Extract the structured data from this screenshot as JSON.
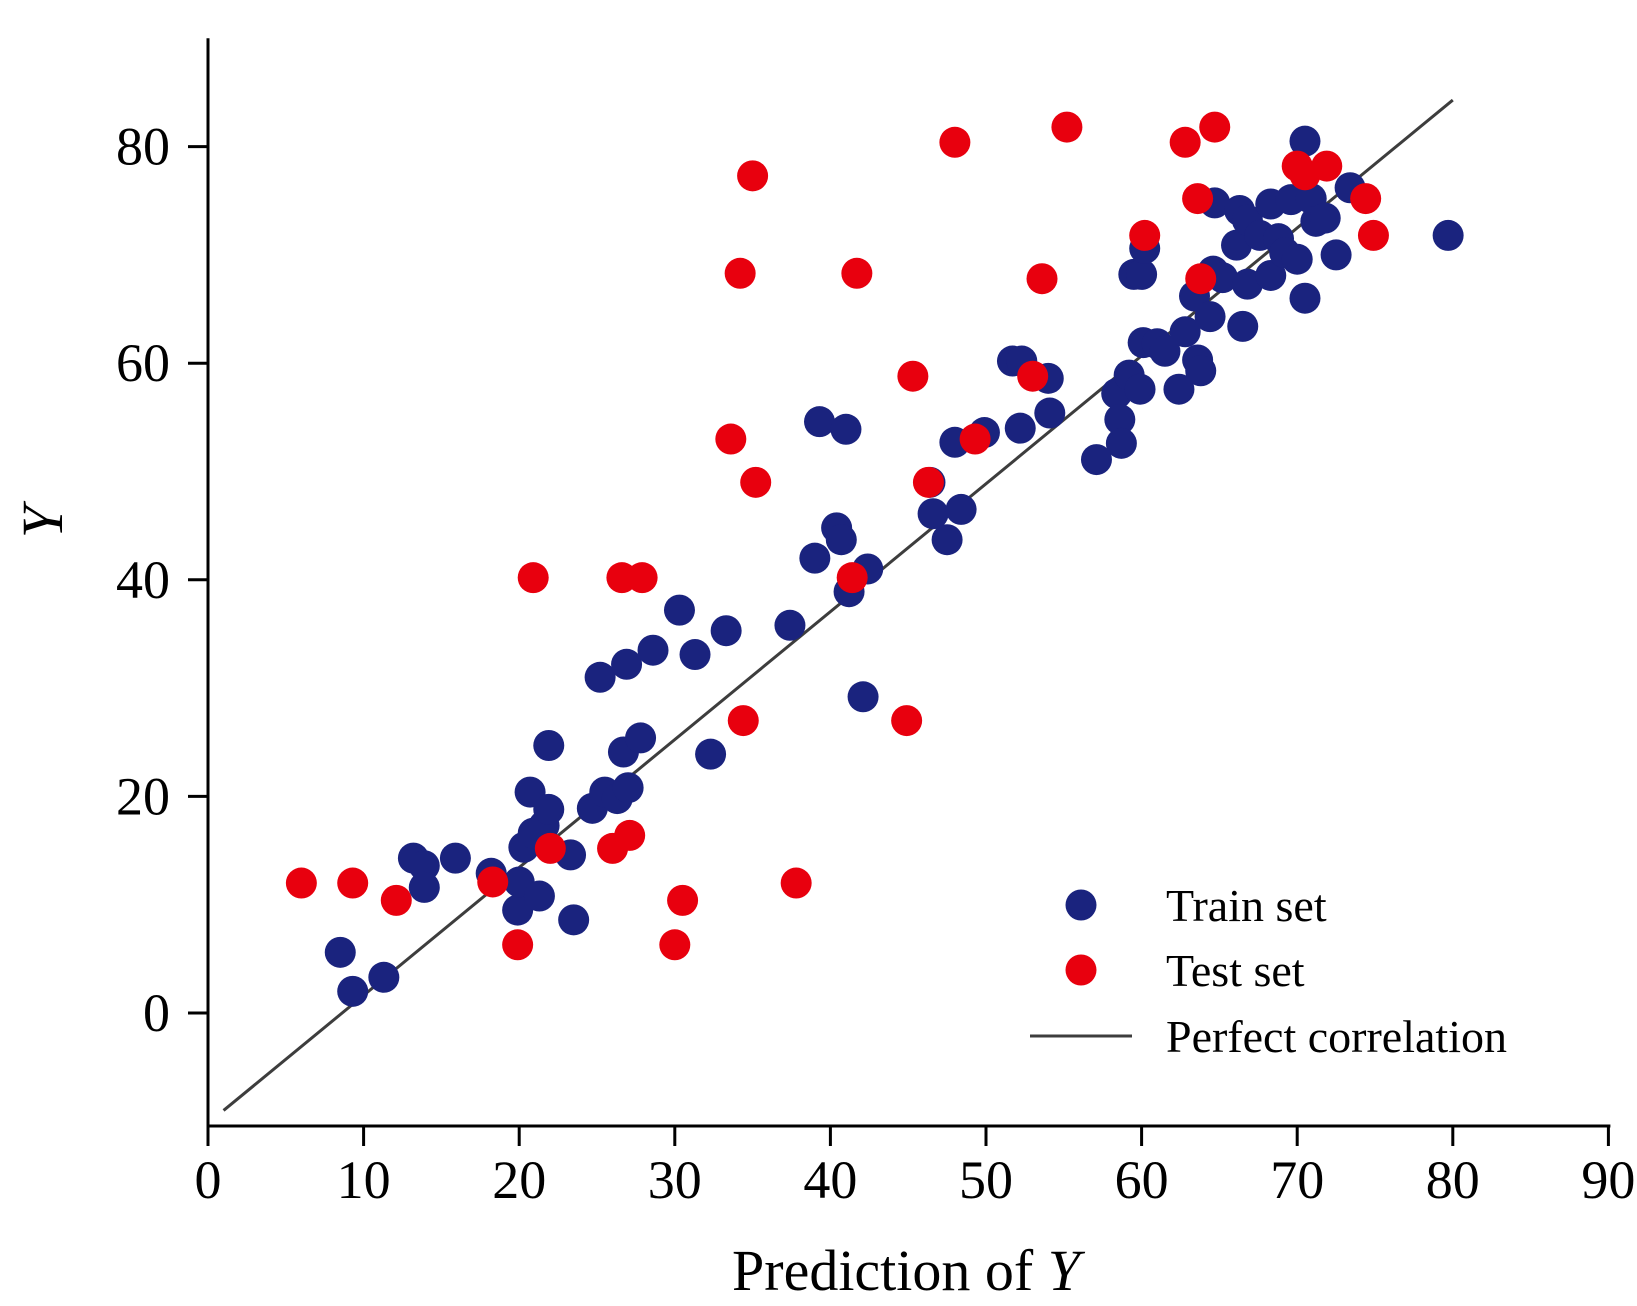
{
  "chart_data": {
    "type": "scatter",
    "title": "",
    "xlabel": "Prediction of Y",
    "xlabel_parts": {
      "text": "Prediction of ",
      "italic_var": "Y"
    },
    "ylabel": "Y",
    "xlim": [
      0,
      90
    ],
    "ylim": [
      -10,
      90
    ],
    "x_ticks": [
      0,
      10,
      20,
      30,
      40,
      50,
      60,
      70,
      80,
      90
    ],
    "y_ticks": [
      0,
      20,
      40,
      60,
      80
    ],
    "grid": false,
    "legend_position": "bottom-right",
    "colors": {
      "train": "#1a237e",
      "test": "#e8000e",
      "line": "#3d3d3d"
    },
    "series": [
      {
        "name": "Train set",
        "marker": "circle",
        "color": "#1a237e",
        "points": [
          [
            8.5,
            5.6
          ],
          [
            9.3,
            2.0
          ],
          [
            11.3,
            3.3
          ],
          [
            13.2,
            14.3
          ],
          [
            13.9,
            13.6
          ],
          [
            13.9,
            11.6
          ],
          [
            15.9,
            14.3
          ],
          [
            18.2,
            12.9
          ],
          [
            19.9,
            9.5
          ],
          [
            20.0,
            12.1
          ],
          [
            20.3,
            15.3
          ],
          [
            20.7,
            20.4
          ],
          [
            20.9,
            16.6
          ],
          [
            21.3,
            10.8
          ],
          [
            21.6,
            17.3
          ],
          [
            21.9,
            18.8
          ],
          [
            21.9,
            24.7
          ],
          [
            23.3,
            14.6
          ],
          [
            23.5,
            8.6
          ],
          [
            24.7,
            18.9
          ],
          [
            25.2,
            31.0
          ],
          [
            25.5,
            20.4
          ],
          [
            26.3,
            19.8
          ],
          [
            26.7,
            24.1
          ],
          [
            26.9,
            32.2
          ],
          [
            27.0,
            20.8
          ],
          [
            27.8,
            25.4
          ],
          [
            28.6,
            33.5
          ],
          [
            30.3,
            37.2
          ],
          [
            31.3,
            33.1
          ],
          [
            32.3,
            23.9
          ],
          [
            33.3,
            35.3
          ],
          [
            37.4,
            35.8
          ],
          [
            39.0,
            42.0
          ],
          [
            39.3,
            54.6
          ],
          [
            40.4,
            44.8
          ],
          [
            40.7,
            43.7
          ],
          [
            41.0,
            53.9
          ],
          [
            41.2,
            38.9
          ],
          [
            42.1,
            29.2
          ],
          [
            42.4,
            41.0
          ],
          [
            46.4,
            49.0
          ],
          [
            46.6,
            46.1
          ],
          [
            47.5,
            43.7
          ],
          [
            48.0,
            52.7
          ],
          [
            48.4,
            46.5
          ],
          [
            49.9,
            53.6
          ],
          [
            51.7,
            60.2
          ],
          [
            52.2,
            54.0
          ],
          [
            52.3,
            60.2
          ],
          [
            54.0,
            58.6
          ],
          [
            54.1,
            55.4
          ],
          [
            57.1,
            51.1
          ],
          [
            58.4,
            57.2
          ],
          [
            58.6,
            54.8
          ],
          [
            58.7,
            52.6
          ],
          [
            59.2,
            58.9
          ],
          [
            59.5,
            68.2
          ],
          [
            59.9,
            57.6
          ],
          [
            60.0,
            68.2
          ],
          [
            60.1,
            61.9
          ],
          [
            60.2,
            70.6
          ],
          [
            61.0,
            61.8
          ],
          [
            61.5,
            61.1
          ],
          [
            62.4,
            57.6
          ],
          [
            62.8,
            62.9
          ],
          [
            63.4,
            66.2
          ],
          [
            63.6,
            60.3
          ],
          [
            63.8,
            59.3
          ],
          [
            64.4,
            64.3
          ],
          [
            64.6,
            68.5
          ],
          [
            64.7,
            74.8
          ],
          [
            65.2,
            67.9
          ],
          [
            66.1,
            70.9
          ],
          [
            66.3,
            74.1
          ],
          [
            66.5,
            63.4
          ],
          [
            66.8,
            73.2
          ],
          [
            66.8,
            67.3
          ],
          [
            67.6,
            71.8
          ],
          [
            68.3,
            68.1
          ],
          [
            68.3,
            74.7
          ],
          [
            68.8,
            71.5
          ],
          [
            69.2,
            70.2
          ],
          [
            69.6,
            75.1
          ],
          [
            70.0,
            69.6
          ],
          [
            70.5,
            80.5
          ],
          [
            70.5,
            66.0
          ],
          [
            70.9,
            75.2
          ],
          [
            71.2,
            73.1
          ],
          [
            71.8,
            73.4
          ],
          [
            72.5,
            70.0
          ],
          [
            73.4,
            76.2
          ],
          [
            79.7,
            71.8
          ]
        ]
      },
      {
        "name": "Test set",
        "marker": "circle",
        "color": "#e8000e",
        "points": [
          [
            6.0,
            12.0
          ],
          [
            9.3,
            12.0
          ],
          [
            12.1,
            10.4
          ],
          [
            18.3,
            12.1
          ],
          [
            19.9,
            6.3
          ],
          [
            20.9,
            40.2
          ],
          [
            22.0,
            15.2
          ],
          [
            26.0,
            15.2
          ],
          [
            26.6,
            40.2
          ],
          [
            27.1,
            16.4
          ],
          [
            27.9,
            40.2
          ],
          [
            30.0,
            6.3
          ],
          [
            30.5,
            10.4
          ],
          [
            33.6,
            53.0
          ],
          [
            34.2,
            68.3
          ],
          [
            34.4,
            27.0
          ],
          [
            35.0,
            77.3
          ],
          [
            35.2,
            49.0
          ],
          [
            37.8,
            12.0
          ],
          [
            41.4,
            40.2
          ],
          [
            41.7,
            68.3
          ],
          [
            44.9,
            27.0
          ],
          [
            45.3,
            58.8
          ],
          [
            46.3,
            49.0
          ],
          [
            48.0,
            80.4
          ],
          [
            49.3,
            53.0
          ],
          [
            53.0,
            58.8
          ],
          [
            53.6,
            67.8
          ],
          [
            55.2,
            81.8
          ],
          [
            60.2,
            71.8
          ],
          [
            62.8,
            80.4
          ],
          [
            63.6,
            75.2
          ],
          [
            63.8,
            67.8
          ],
          [
            64.7,
            81.8
          ],
          [
            70.0,
            78.2
          ],
          [
            70.5,
            77.4
          ],
          [
            71.9,
            78.2
          ],
          [
            74.4,
            75.2
          ],
          [
            74.9,
            71.8
          ]
        ]
      },
      {
        "name": "Perfect correlation",
        "type": "line",
        "color": "#3d3d3d",
        "points": [
          [
            1.0,
            -9.0
          ],
          [
            80.0,
            84.3
          ]
        ]
      }
    ]
  }
}
